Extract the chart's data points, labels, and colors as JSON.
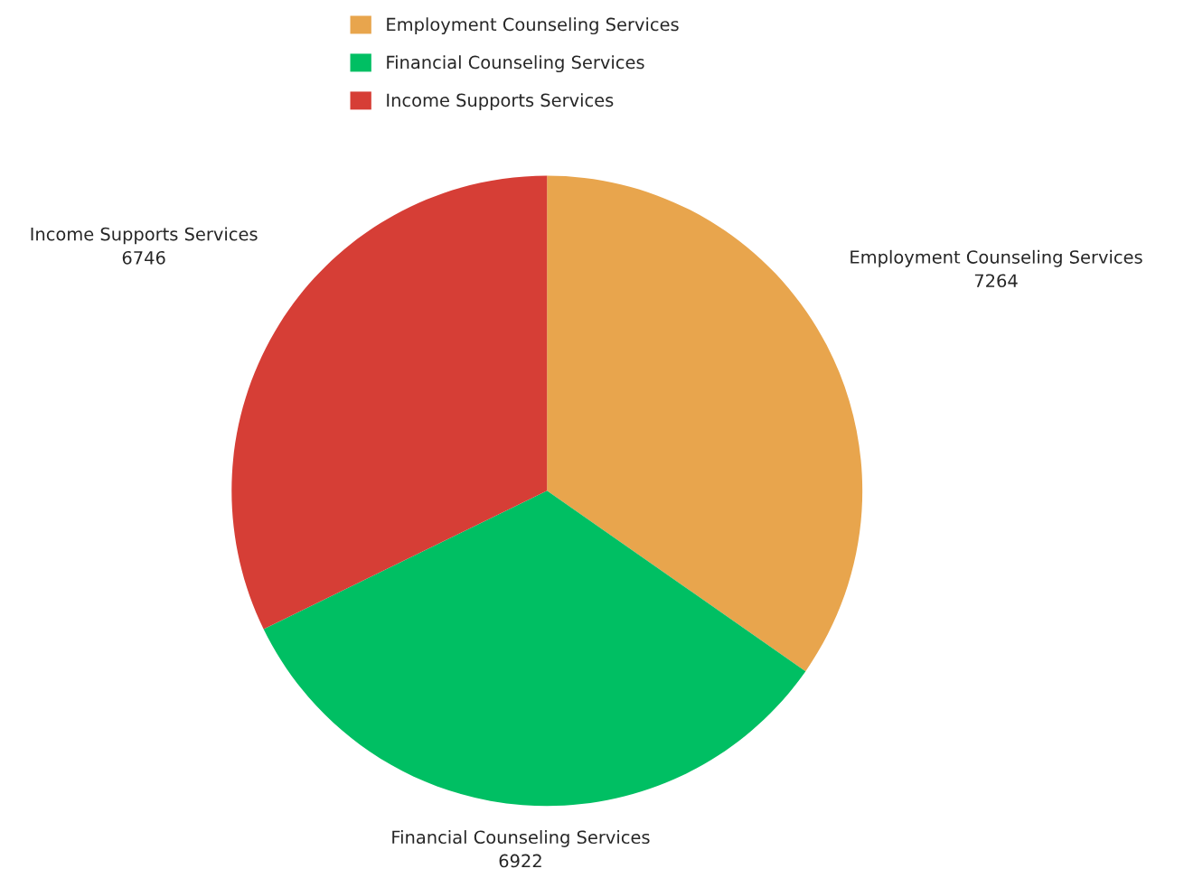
{
  "chart_data": {
    "type": "pie",
    "categories": [
      "Employment Counseling Services",
      "Financial Counseling Services",
      "Income Supports Services"
    ],
    "values": [
      7264,
      6922,
      6746
    ],
    "colors": [
      "#e8a54d",
      "#00bf63",
      "#d63e36"
    ],
    "data_labels": true,
    "legend": "top"
  }
}
